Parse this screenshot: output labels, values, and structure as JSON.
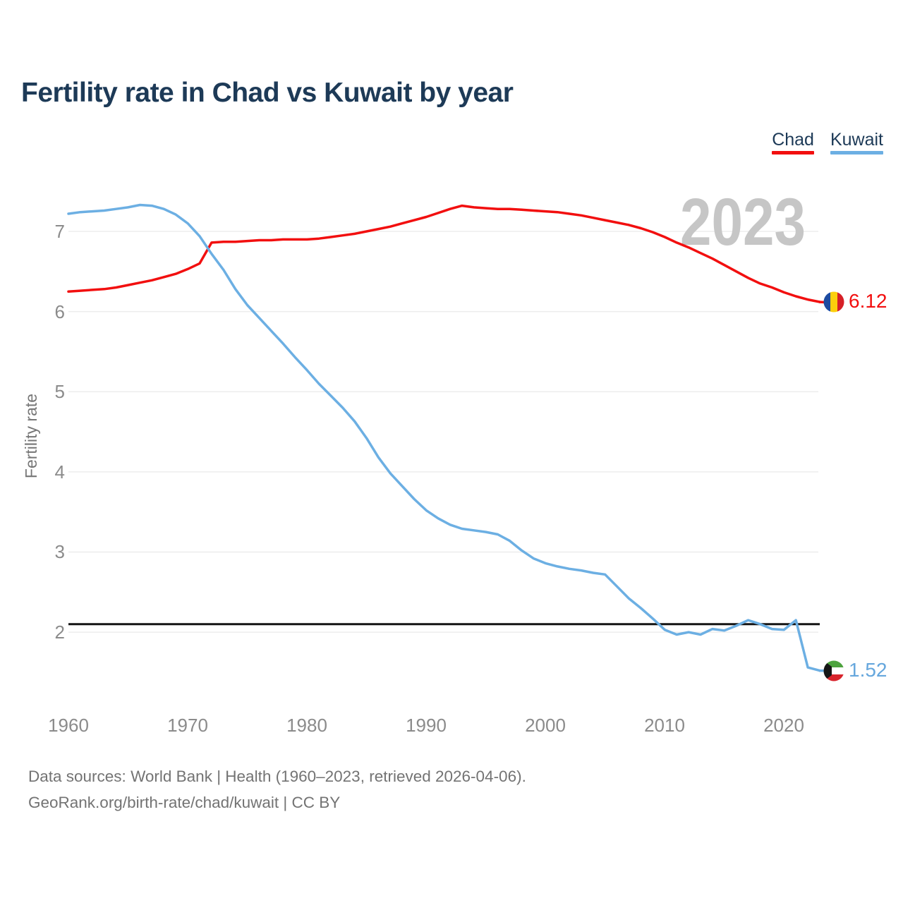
{
  "header": {
    "title": "Fertility rate in Chad vs Kuwait by year"
  },
  "legend": [
    {
      "label": "Chad",
      "color": "#f20f0f"
    },
    {
      "label": "Kuwait",
      "color": "#6cafe3"
    }
  ],
  "watermark": "2023",
  "y_axis": {
    "label": "Fertility rate",
    "ticks": [
      7,
      6,
      5,
      4,
      3,
      2
    ]
  },
  "x_axis": {
    "ticks": [
      1960,
      1970,
      1980,
      1990,
      2000,
      2010,
      2020
    ]
  },
  "end_labels": {
    "chad": {
      "value": "6.12",
      "color": "#f20f0f",
      "flag": "chad-flag"
    },
    "kuwait": {
      "value": "1.52",
      "color": "#66a7dd",
      "flag": "kuwait-flag"
    }
  },
  "reference_line": {
    "value": 2.1,
    "color": "#141414"
  },
  "footer": {
    "line1": "Data sources: World Bank | Health (1960–2023, retrieved 2026-04-06).",
    "line2": "GeoRank.org/birth-rate/chad/kuwait | CC BY"
  },
  "chart_data": {
    "type": "line",
    "title": "Fertility rate in Chad vs Kuwait by year",
    "xlabel": "",
    "ylabel": "Fertility rate",
    "xlim": [
      1960,
      2023
    ],
    "ylim": [
      1.3,
      7.6
    ],
    "grid": true,
    "legend_position": "top-right",
    "annotations": {
      "horizontal_line_y": 2.1,
      "watermark": "2023"
    },
    "x": [
      1960,
      1961,
      1962,
      1963,
      1964,
      1965,
      1966,
      1967,
      1968,
      1969,
      1970,
      1971,
      1972,
      1973,
      1974,
      1975,
      1976,
      1977,
      1978,
      1979,
      1980,
      1981,
      1982,
      1983,
      1984,
      1985,
      1986,
      1987,
      1988,
      1989,
      1990,
      1991,
      1992,
      1993,
      1994,
      1995,
      1996,
      1997,
      1998,
      1999,
      2000,
      2001,
      2002,
      2003,
      2004,
      2005,
      2006,
      2007,
      2008,
      2009,
      2010,
      2011,
      2012,
      2013,
      2014,
      2015,
      2016,
      2017,
      2018,
      2019,
      2020,
      2021,
      2022,
      2023
    ],
    "series": [
      {
        "name": "Chad",
        "color": "#f20f0f",
        "end_value": 6.12,
        "values": [
          6.25,
          6.26,
          6.27,
          6.28,
          6.3,
          6.33,
          6.36,
          6.39,
          6.43,
          6.47,
          6.53,
          6.6,
          6.86,
          6.87,
          6.87,
          6.88,
          6.89,
          6.89,
          6.9,
          6.9,
          6.9,
          6.91,
          6.93,
          6.95,
          6.97,
          7.0,
          7.03,
          7.06,
          7.1,
          7.14,
          7.18,
          7.23,
          7.28,
          7.32,
          7.3,
          7.29,
          7.28,
          7.28,
          7.27,
          7.26,
          7.25,
          7.24,
          7.22,
          7.2,
          7.17,
          7.14,
          7.11,
          7.08,
          7.04,
          6.99,
          6.93,
          6.86,
          6.8,
          6.73,
          6.66,
          6.58,
          6.5,
          6.42,
          6.35,
          6.3,
          6.24,
          6.19,
          6.15,
          6.12
        ]
      },
      {
        "name": "Kuwait",
        "color": "#6cafe3",
        "end_value": 1.52,
        "values": [
          7.22,
          7.24,
          7.25,
          7.26,
          7.28,
          7.3,
          7.33,
          7.32,
          7.28,
          7.21,
          7.1,
          6.94,
          6.72,
          6.52,
          6.28,
          6.08,
          5.92,
          5.76,
          5.6,
          5.43,
          5.27,
          5.1,
          4.95,
          4.8,
          4.63,
          4.42,
          4.18,
          3.98,
          3.82,
          3.66,
          3.52,
          3.42,
          3.34,
          3.29,
          3.27,
          3.25,
          3.22,
          3.14,
          3.02,
          2.92,
          2.86,
          2.82,
          2.79,
          2.77,
          2.74,
          2.72,
          2.57,
          2.42,
          2.3,
          2.17,
          2.03,
          1.97,
          2.0,
          1.97,
          2.04,
          2.02,
          2.08,
          2.15,
          2.1,
          2.04,
          2.03,
          2.15,
          1.56,
          1.52
        ]
      }
    ]
  }
}
